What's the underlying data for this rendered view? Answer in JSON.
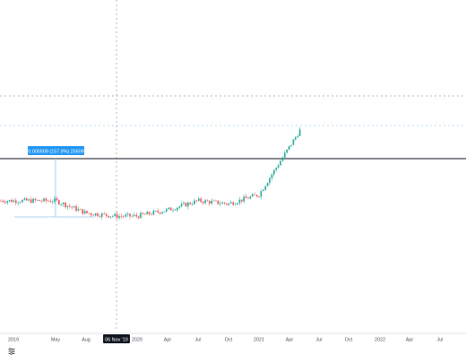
{
  "colors": {
    "up": "#26a69a",
    "down": "#ef5350",
    "crosshair": "#9e9e9e",
    "tooltip_bg": "#2196f3",
    "horizontal_line": "#131722",
    "measure_line": "#8fc4ec",
    "axis_text": "#4a4f5c",
    "date_badge_bg": "#131722",
    "date_badge_text": "#ffffff",
    "dotted_level": "#9aa0a8",
    "dotted_level_blue": "#a9d3f2"
  },
  "measure_label": "0.005509 (157.9%) 25509",
  "crosshair_date": "06 Nov '19",
  "x_axis_ticks": [
    "2019",
    "May",
    "Aug",
    "2020",
    "Apr",
    "Jul",
    "Oct",
    "2021",
    "Apr",
    "Jul",
    "Oct",
    "2022",
    "Apr",
    "Jul"
  ],
  "bottom_icon": "settings-sliders-icon",
  "chart_data": {
    "type": "candlestick",
    "x": [
      "2019-01",
      "2019-05",
      "2019-08",
      "2019-11-06",
      "2020-01",
      "2020-04",
      "2020-07",
      "2020-10",
      "2021-01",
      "2021-04"
    ],
    "trend": [
      0.0037,
      0.0037,
      0.0033,
      0.0032,
      0.0032,
      0.0034,
      0.0037,
      0.0036,
      0.0039,
      0.006
    ],
    "grid": false,
    "legend": "none"
  }
}
